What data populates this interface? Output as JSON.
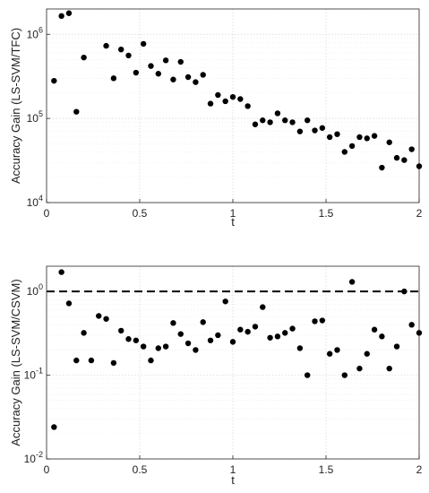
{
  "chart_data": [
    {
      "type": "scatter",
      "ylabel": "Accuracy Gain (LS-SVM/TFC)",
      "xlabel": "t",
      "xlim": [
        0,
        2
      ],
      "ylim": [
        10000,
        2000000
      ],
      "yscale": "log",
      "grid": true,
      "x_ticks": [
        0,
        0.5,
        1,
        1.5,
        2
      ],
      "x_tick_labels": [
        "0",
        "0.5",
        "1",
        "1.5",
        "2"
      ],
      "y_ticks": [
        10000,
        100000,
        1000000
      ],
      "y_tick_labels": [
        "10^4",
        "10^5",
        "10^6"
      ],
      "series": [
        {
          "color": "#000000",
          "x": [
            0.04,
            0.08,
            0.12,
            0.16,
            0.2,
            0.32,
            0.36,
            0.4,
            0.44,
            0.48,
            0.52,
            0.56,
            0.6,
            0.64,
            0.68,
            0.72,
            0.76,
            0.8,
            0.84,
            0.88,
            0.92,
            0.96,
            1.0,
            1.04,
            1.08,
            1.12,
            1.16,
            1.2,
            1.24,
            1.28,
            1.32,
            1.36,
            1.4,
            1.44,
            1.48,
            1.52,
            1.56,
            1.6,
            1.64,
            1.68,
            1.72,
            1.76,
            1.8,
            1.84,
            1.88,
            1.92,
            1.96,
            2.0
          ],
          "y": [
            280000,
            1650000,
            1780000,
            120000,
            530000,
            730000,
            300000,
            660000,
            560000,
            350000,
            770000,
            420000,
            340000,
            490000,
            290000,
            470000,
            310000,
            270000,
            330000,
            150000,
            190000,
            160000,
            180000,
            170000,
            140000,
            85000,
            95000,
            90000,
            115000,
            95000,
            90000,
            70000,
            95000,
            72000,
            77000,
            60000,
            65000,
            40000,
            47000,
            60000,
            58000,
            62000,
            26000,
            52000,
            34000,
            32000,
            43000,
            27000
          ]
        }
      ]
    },
    {
      "type": "scatter",
      "ylabel": "Accuracy Gain (LS-SVM/CSVM)",
      "xlabel": "t",
      "xlim": [
        0,
        2
      ],
      "ylim": [
        0.01,
        2
      ],
      "yscale": "log",
      "grid": true,
      "x_ticks": [
        0,
        0.5,
        1,
        1.5,
        2
      ],
      "x_tick_labels": [
        "0",
        "0.5",
        "1",
        "1.5",
        "2"
      ],
      "y_ticks": [
        0.01,
        0.1,
        1
      ],
      "y_tick_labels": [
        "10^-2",
        "10^-1",
        "10^0"
      ],
      "reference_line": {
        "y": 1,
        "style": "dashed"
      },
      "series": [
        {
          "color": "#000000",
          "x": [
            0.04,
            0.08,
            0.12,
            0.16,
            0.2,
            0.24,
            0.28,
            0.32,
            0.36,
            0.4,
            0.44,
            0.48,
            0.52,
            0.56,
            0.6,
            0.64,
            0.68,
            0.72,
            0.76,
            0.8,
            0.84,
            0.88,
            0.92,
            0.96,
            1.0,
            1.04,
            1.08,
            1.12,
            1.16,
            1.2,
            1.24,
            1.28,
            1.32,
            1.36,
            1.4,
            1.44,
            1.48,
            1.52,
            1.56,
            1.6,
            1.64,
            1.68,
            1.72,
            1.76,
            1.8,
            1.84,
            1.88,
            1.92,
            1.96,
            2.0
          ],
          "y": [
            0.024,
            1.7,
            0.72,
            0.15,
            0.32,
            0.15,
            0.51,
            0.47,
            0.14,
            0.34,
            0.27,
            0.26,
            0.22,
            0.15,
            0.21,
            0.22,
            0.42,
            0.31,
            0.24,
            0.2,
            0.43,
            0.26,
            0.3,
            0.76,
            0.25,
            0.35,
            0.33,
            0.38,
            0.65,
            0.28,
            0.29,
            0.32,
            0.36,
            0.21,
            0.1,
            0.44,
            0.45,
            0.18,
            0.2,
            0.1,
            1.3,
            0.12,
            0.18,
            0.35,
            0.29,
            0.12,
            0.22,
            1.0,
            0.4,
            0.32
          ]
        }
      ]
    }
  ]
}
